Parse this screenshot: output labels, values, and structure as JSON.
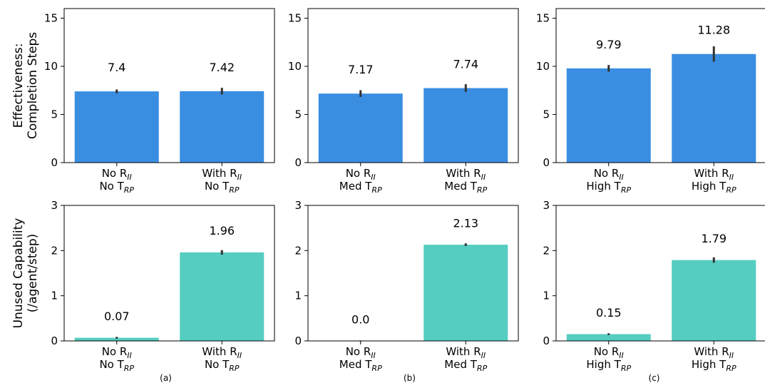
{
  "panel_labels": [
    "(a)",
    "(b)",
    "(c)"
  ],
  "colors": {
    "effectiveness": "#3a8ee2",
    "unused": "#55cdc1",
    "error_bar": "#333333"
  },
  "chart_data": [
    {
      "type": "bar",
      "row": 0,
      "col": 0,
      "ylabel": [
        "Effectiveness:",
        "Completion Steps"
      ],
      "ylim": [
        0,
        16
      ],
      "yticks": [
        "0",
        "5",
        "10",
        "15"
      ],
      "categories": [
        {
          "line1": "No R",
          "sub1": "II",
          "line2": "No T",
          "sub2": "RP"
        },
        {
          "line1": "With R",
          "sub1": "II",
          "line2": "No T",
          "sub2": "RP"
        }
      ],
      "values": [
        7.4,
        7.42
      ],
      "value_labels": [
        "7.4",
        "7.42"
      ],
      "errors": [
        0.2,
        0.35
      ]
    },
    {
      "type": "bar",
      "row": 0,
      "col": 1,
      "ylim": [
        0,
        16
      ],
      "yticks": [
        "0",
        "5",
        "10",
        "15"
      ],
      "categories": [
        {
          "line1": "No R",
          "sub1": "II",
          "line2": "Med T",
          "sub2": "RP"
        },
        {
          "line1": "With R",
          "sub1": "II",
          "line2": "Med T",
          "sub2": "RP"
        }
      ],
      "values": [
        7.17,
        7.74
      ],
      "value_labels": [
        "7.17",
        "7.74"
      ],
      "errors": [
        0.35,
        0.4
      ]
    },
    {
      "type": "bar",
      "row": 0,
      "col": 2,
      "ylim": [
        0,
        16
      ],
      "yticks": [
        "0",
        "5",
        "10",
        "15"
      ],
      "categories": [
        {
          "line1": "No R",
          "sub1": "II",
          "line2": "High T",
          "sub2": "RP"
        },
        {
          "line1": "With R",
          "sub1": "II",
          "line2": "High T",
          "sub2": "RP"
        }
      ],
      "values": [
        9.79,
        11.28
      ],
      "value_labels": [
        "9.79",
        "11.28"
      ],
      "errors": [
        0.35,
        0.8
      ]
    },
    {
      "type": "bar",
      "row": 1,
      "col": 0,
      "ylabel": [
        "Unused Capability",
        "(/agent/step)"
      ],
      "ylim": [
        0,
        3
      ],
      "yticks": [
        "0",
        "1",
        "2",
        "3"
      ],
      "categories": [
        {
          "line1": "No R",
          "sub1": "II",
          "line2": "No T",
          "sub2": "RP"
        },
        {
          "line1": "With R",
          "sub1": "II",
          "line2": "No T",
          "sub2": "RP"
        }
      ],
      "values": [
        0.07,
        1.96
      ],
      "value_labels": [
        "0.07",
        "1.96"
      ],
      "errors": [
        0.02,
        0.05
      ]
    },
    {
      "type": "bar",
      "row": 1,
      "col": 1,
      "ylim": [
        0,
        3
      ],
      "yticks": [
        "0",
        "1",
        "2",
        "3"
      ],
      "categories": [
        {
          "line1": "No R",
          "sub1": "II",
          "line2": "Med T",
          "sub2": "RP"
        },
        {
          "line1": "With R",
          "sub1": "II",
          "line2": "Med T",
          "sub2": "RP"
        }
      ],
      "values": [
        0.0,
        2.13
      ],
      "value_labels": [
        "0.0",
        "2.13"
      ],
      "errors": [
        0.01,
        0.03
      ]
    },
    {
      "type": "bar",
      "row": 1,
      "col": 2,
      "ylim": [
        0,
        3
      ],
      "yticks": [
        "0",
        "1",
        "2",
        "3"
      ],
      "categories": [
        {
          "line1": "No R",
          "sub1": "II",
          "line2": "High T",
          "sub2": "RP"
        },
        {
          "line1": "With R",
          "sub1": "II",
          "line2": "High T",
          "sub2": "RP"
        }
      ],
      "values": [
        0.15,
        1.79
      ],
      "value_labels": [
        "0.15",
        "1.79"
      ],
      "errors": [
        0.02,
        0.06
      ]
    }
  ]
}
